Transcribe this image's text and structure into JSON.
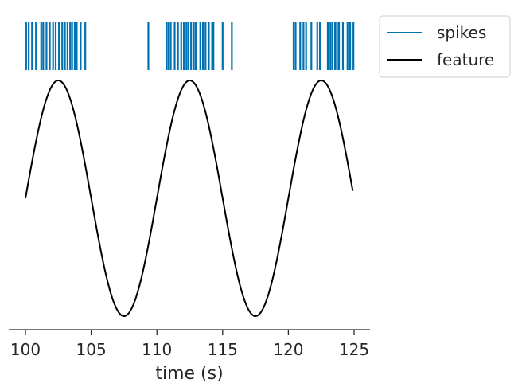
{
  "chart_data": {
    "type": "line",
    "xlabel": "time (s)",
    "xlim": [
      99,
      126
    ],
    "xticks": [
      100,
      105,
      110,
      115,
      120,
      125
    ],
    "xtick_labels": [
      "100",
      "105",
      "110",
      "115",
      "120",
      "125"
    ],
    "grid": false,
    "legend_position": "outside top-right",
    "series": [
      {
        "name": "spikes",
        "kind": "event raster",
        "color": "#0072b2",
        "times": [
          100.05,
          100.25,
          100.5,
          100.8,
          101.2,
          101.35,
          101.6,
          101.85,
          102.1,
          102.3,
          102.55,
          102.8,
          103.0,
          103.2,
          103.4,
          103.55,
          103.75,
          103.9,
          104.2,
          104.55,
          109.35,
          110.75,
          110.9,
          111.05,
          111.35,
          111.6,
          111.85,
          112.05,
          112.25,
          112.4,
          112.6,
          112.8,
          112.95,
          113.3,
          113.5,
          113.7,
          113.95,
          114.2,
          114.3,
          115.0,
          115.7,
          120.4,
          120.55,
          120.9,
          121.15,
          121.35,
          121.75,
          122.2,
          122.4,
          123.0,
          123.2,
          123.35,
          123.55,
          123.7,
          123.85,
          124.15,
          124.5,
          124.7,
          124.95
        ]
      },
      {
        "name": "feature",
        "kind": "line",
        "color": "#000000",
        "function": "sin(2*pi*(t - 100)/10)",
        "t_range": [
          100,
          124.9
        ],
        "amplitude": 1,
        "period_s": 10
      }
    ]
  }
}
